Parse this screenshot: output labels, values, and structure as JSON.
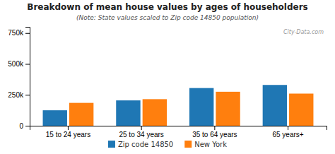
{
  "chart_data": {
    "type": "bar",
    "title": "Breakdown of mean house values by ages of householders",
    "subtitle": "(Note: State values scaled to Zip code 14850 population)",
    "annotations": [
      "City-Data.com"
    ],
    "categories": [
      "15 to 24 years",
      "25 to 34 years",
      "35 to 64 years",
      "65 years+"
    ],
    "series": [
      {
        "name": "Zip code 14850",
        "values": [
          125000,
          205000,
          305000,
          330000
        ]
      },
      {
        "name": "New York",
        "values": [
          185000,
          215000,
          275000,
          260000
        ]
      }
    ],
    "ylim": [
      0,
      800000
    ],
    "yticks": [
      0,
      {
        "value": 250000,
        "label": "250k"
      },
      {
        "value": 500000,
        "label": "500k"
      },
      {
        "value": 750000,
        "label": "750k"
      }
    ],
    "grid": false,
    "legend": "bottom"
  }
}
